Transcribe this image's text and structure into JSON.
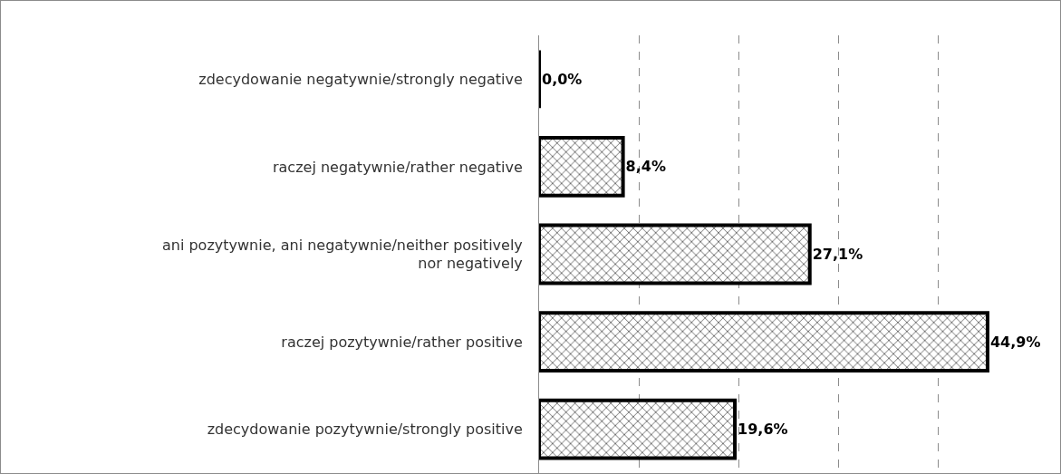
{
  "chart_data": {
    "type": "bar",
    "orientation": "horizontal",
    "categories": [
      "zdecydowanie negatywnie/strongly negative",
      "raczej negatywnie/rather negative",
      "ani pozytywnie, ani negatywnie/neither positively nor negatively",
      "raczej pozytywnie/rather positive",
      "zdecydowanie pozytywnie/strongly positive"
    ],
    "values": [
      0,
      8.4,
      27.1,
      44.9,
      19.6
    ],
    "value_labels": [
      "0,0%",
      "8,4%",
      "27,1%",
      "44,9%",
      "19,6%"
    ],
    "color": "#000000",
    "tick_labels": "y",
    "grid": "x",
    "line_style": "dashed",
    "legend": false
  }
}
